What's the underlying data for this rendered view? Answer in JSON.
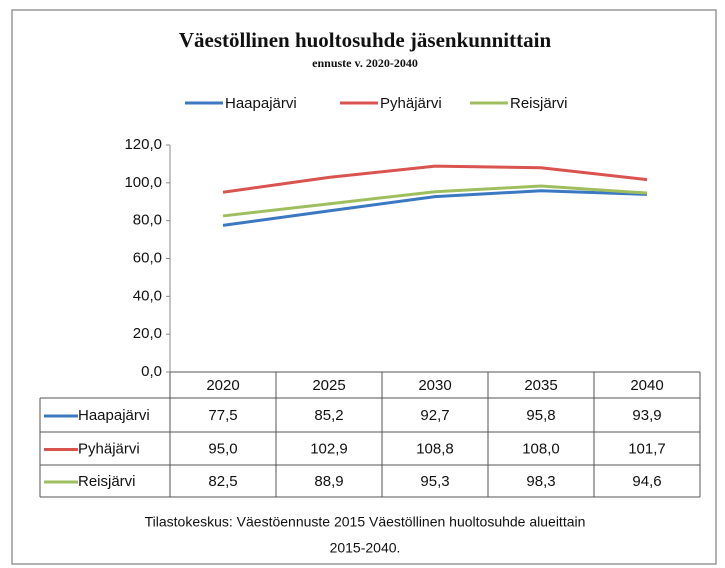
{
  "chart_data": {
    "type": "line",
    "title": "Väestöllinen huoltosuhde jäsenkunnittain",
    "subtitle": "ennuste v. 2020-2040",
    "categories": [
      "2020",
      "2025",
      "2030",
      "2035",
      "2040"
    ],
    "series": [
      {
        "name": "Haapajärvi",
        "color": "#3b78c2",
        "values": [
          77.5,
          85.2,
          92.7,
          95.8,
          93.9
        ],
        "value_labels": [
          "77,5",
          "85,2",
          "92,7",
          "95,8",
          "93,9"
        ]
      },
      {
        "name": "Pyhäjärvi",
        "color": "#d9534f",
        "values": [
          95.0,
          102.9,
          108.8,
          108.0,
          101.7
        ],
        "value_labels": [
          "95,0",
          "102,9",
          "108,8",
          "108,0",
          "101,7"
        ]
      },
      {
        "name": "Reisjärvi",
        "color": "#9fbf5f",
        "values": [
          82.5,
          88.9,
          95.3,
          98.3,
          94.6
        ],
        "value_labels": [
          "82,5",
          "88,9",
          "95,3",
          "98,3",
          "94,6"
        ]
      }
    ],
    "ylim": [
      0,
      120
    ],
    "yticks": [
      {
        "value": 0,
        "label": "0,0"
      },
      {
        "value": 20,
        "label": "20,0"
      },
      {
        "value": 40,
        "label": "40,0"
      },
      {
        "value": 60,
        "label": "60,0"
      },
      {
        "value": 80,
        "label": "80,0"
      },
      {
        "value": 100,
        "label": "100,0"
      },
      {
        "value": 120,
        "label": "120,0"
      }
    ],
    "grid": false,
    "legend": "top",
    "source": [
      "Tilastokeskus: Väestöennuste 2015 Väestöllinen huoltosuhde alueittain",
      "2015-2040."
    ]
  }
}
